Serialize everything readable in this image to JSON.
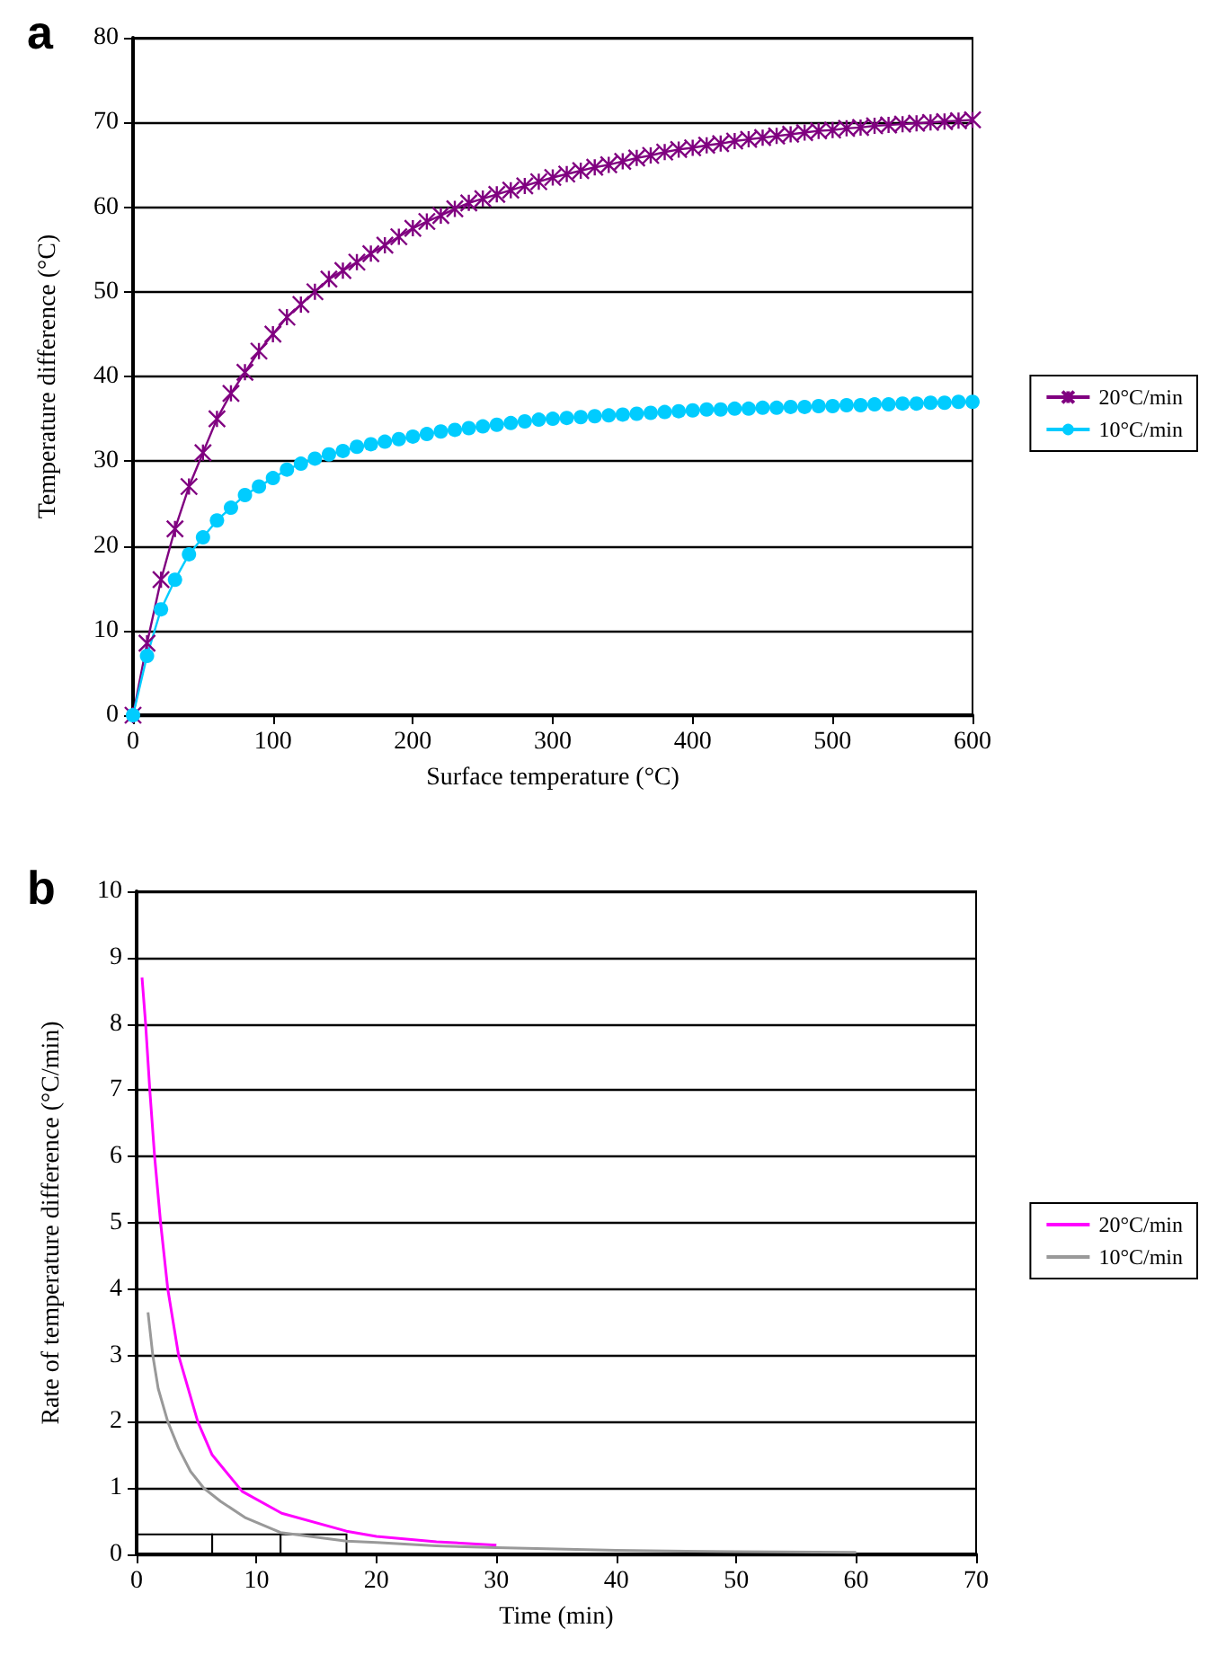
{
  "chart_data": [
    {
      "type": "line",
      "title": "a",
      "xlabel": "Surface temperature (°C)",
      "ylabel": "Temperature difference (°C)",
      "xlim": [
        0,
        600
      ],
      "xticks": [
        0,
        100,
        200,
        300,
        400,
        500,
        600
      ],
      "ylim": [
        0,
        80
      ],
      "yticks": [
        0,
        10,
        20,
        30,
        40,
        50,
        60,
        70,
        80
      ],
      "grid": "y",
      "legend": "right",
      "x": [
        0,
        10,
        20,
        30,
        40,
        50,
        60,
        70,
        80,
        90,
        100,
        110,
        120,
        130,
        140,
        150,
        160,
        170,
        180,
        190,
        200,
        210,
        220,
        230,
        240,
        250,
        260,
        270,
        280,
        290,
        300,
        310,
        320,
        330,
        340,
        350,
        360,
        370,
        380,
        390,
        400,
        410,
        420,
        430,
        440,
        450,
        460,
        470,
        480,
        490,
        500,
        510,
        520,
        530,
        540,
        550,
        560,
        570,
        580,
        590,
        600
      ],
      "series": [
        {
          "name": "20°C/min",
          "color": "#800080",
          "marker": "cross",
          "values": [
            0,
            8.5,
            16,
            22,
            27,
            31,
            35,
            38,
            40.5,
            43,
            45,
            47,
            48.5,
            50,
            51.5,
            52.5,
            53.5,
            54.5,
            55.5,
            56.5,
            57.5,
            58.3,
            59,
            59.8,
            60.5,
            61,
            61.5,
            62,
            62.5,
            63,
            63.5,
            63.9,
            64.3,
            64.7,
            65,
            65.4,
            65.8,
            66.1,
            66.5,
            66.8,
            67,
            67.3,
            67.5,
            67.8,
            68,
            68.2,
            68.4,
            68.6,
            68.8,
            69,
            69.1,
            69.3,
            69.4,
            69.6,
            69.7,
            69.8,
            69.9,
            70,
            70.1,
            70.2,
            70.3
          ]
        },
        {
          "name": "10°C/min",
          "color": "#00ccff",
          "marker": "circle",
          "values": [
            0,
            7,
            12.5,
            16,
            19,
            21,
            23,
            24.5,
            26,
            27,
            28,
            29,
            29.7,
            30.3,
            30.8,
            31.2,
            31.7,
            32,
            32.3,
            32.6,
            32.9,
            33.2,
            33.5,
            33.7,
            33.9,
            34.1,
            34.3,
            34.5,
            34.7,
            34.9,
            35,
            35.1,
            35.2,
            35.3,
            35.4,
            35.5,
            35.6,
            35.7,
            35.8,
            35.9,
            36,
            36.1,
            36.1,
            36.2,
            36.2,
            36.3,
            36.3,
            36.4,
            36.4,
            36.5,
            36.5,
            36.6,
            36.6,
            36.7,
            36.7,
            36.8,
            36.8,
            36.9,
            36.9,
            37,
            37
          ]
        }
      ]
    },
    {
      "type": "line",
      "title": "b",
      "xlabel": "Time (min)",
      "ylabel": "Rate of temperature difference (°C/min)",
      "xlim": [
        0,
        70
      ],
      "xticks": [
        0,
        10,
        20,
        30,
        40,
        50,
        60,
        70
      ],
      "ylim": [
        0,
        10
      ],
      "yticks": [
        0,
        1,
        2,
        3,
        4,
        5,
        6,
        7,
        8,
        9,
        10
      ],
      "grid": "y",
      "legend": "right",
      "marker": "none",
      "series": [
        {
          "name": "20°C/min",
          "color": "#ff00ff",
          "x": [
            0.45,
            0.75,
            1.1,
            1.5,
            2,
            2.6,
            3.5,
            5.1,
            6.3,
            8.8,
            12.1,
            17.5,
            20,
            25,
            30
          ],
          "values": [
            8.7,
            8,
            7,
            6,
            5,
            4,
            3,
            2,
            1.5,
            0.95,
            0.62,
            0.35,
            0.27,
            0.19,
            0.14
          ]
        },
        {
          "type": "histogram",
          "color": "#000000",
          "bins": [
            0,
            6.3,
            12,
            17.5
          ],
          "values": [
            0.3,
            0.3,
            0.3
          ]
        },
        {
          "name": "10°C/min",
          "color": "#999999",
          "x": [
            0.95,
            1.35,
            1.8,
            2.6,
            3.5,
            4.5,
            5.6,
            7,
            9.1,
            12,
            17.5,
            20,
            25,
            30,
            40,
            50,
            60
          ],
          "values": [
            3.65,
            3,
            2.5,
            2,
            1.6,
            1.25,
            1,
            0.8,
            0.55,
            0.33,
            0.2,
            0.18,
            0.13,
            0.1,
            0.06,
            0.04,
            0.03
          ]
        }
      ]
    }
  ]
}
